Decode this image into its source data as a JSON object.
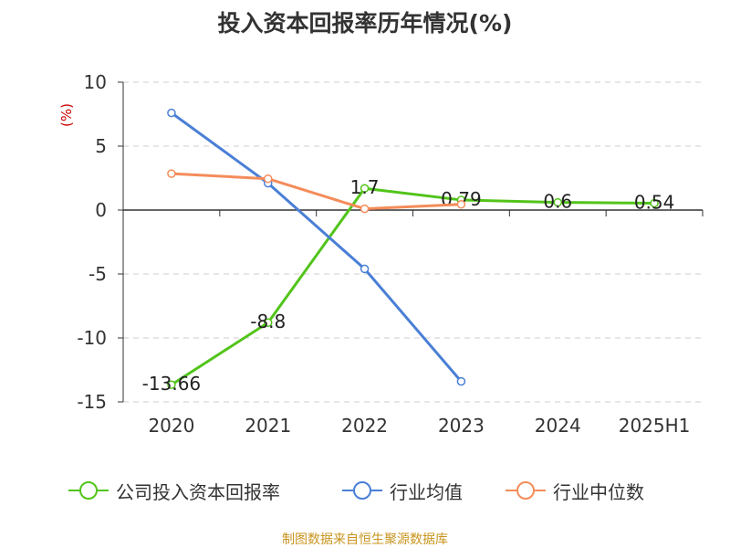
{
  "title": "投入资本回报率历年情况(%)",
  "source": "制图数据来自恒生聚源数据库",
  "colors": {
    "company": "#52c41a",
    "industry_avg": "#4a7fd6",
    "industry_median": "#f48c5a",
    "ylabel": "#cc0000",
    "grid": "#cccccc",
    "axis": "#333333"
  },
  "chart_data": {
    "type": "line",
    "title": "投入资本回报率历年情况(%)",
    "ylabel": "(%)",
    "xlabel": "",
    "categories": [
      "2020",
      "2021",
      "2022",
      "2023",
      "2024",
      "2025H1"
    ],
    "ylim": [
      -15,
      10
    ],
    "yticks": [
      10,
      5,
      0,
      -5,
      -10,
      -15
    ],
    "grid": "horizontal dashed",
    "legend_position": "bottom",
    "series": [
      {
        "name": "公司投入资本回报率",
        "color": "#52c41a",
        "values": [
          -13.66,
          -8.8,
          1.7,
          0.79,
          0.6,
          0.54
        ],
        "labels": [
          "-13.66",
          "-8.8",
          "1.7",
          "0.79",
          "0.6",
          "0.54"
        ]
      },
      {
        "name": "行业均值",
        "color": "#4a7fd6",
        "values": [
          7.6,
          2.1,
          -4.6,
          -13.4,
          null,
          null
        ]
      },
      {
        "name": "行业中位数",
        "color": "#f48c5a",
        "values": [
          2.85,
          2.45,
          0.1,
          0.45,
          null,
          null
        ]
      }
    ]
  }
}
